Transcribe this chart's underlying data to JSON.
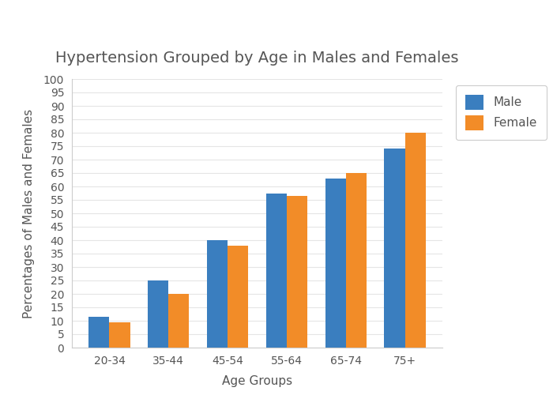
{
  "title": "Hypertension Grouped by Age in Males and Females",
  "xlabel": "Age Groups",
  "ylabel": "Percentages of Males and Females",
  "categories": [
    "20-34",
    "35-44",
    "45-54",
    "55-64",
    "65-74",
    "75+"
  ],
  "male_values": [
    11.5,
    25,
    40,
    57.5,
    63,
    74
  ],
  "female_values": [
    9.5,
    20,
    38,
    56.5,
    65,
    80
  ],
  "male_color": "#3A7EBF",
  "female_color": "#F28C28",
  "ylim": [
    0,
    100
  ],
  "yticks": [
    0,
    5,
    10,
    15,
    20,
    25,
    30,
    35,
    40,
    45,
    50,
    55,
    60,
    65,
    70,
    75,
    80,
    85,
    90,
    95,
    100
  ],
  "background_color": "#ffffff",
  "plot_bg_color": "#ffffff",
  "title_fontsize": 14,
  "label_fontsize": 11,
  "tick_fontsize": 10,
  "legend_fontsize": 11,
  "bar_width": 0.35,
  "grid_color": "#e5e5e5",
  "spine_color": "#cccccc",
  "text_color": "#555555"
}
